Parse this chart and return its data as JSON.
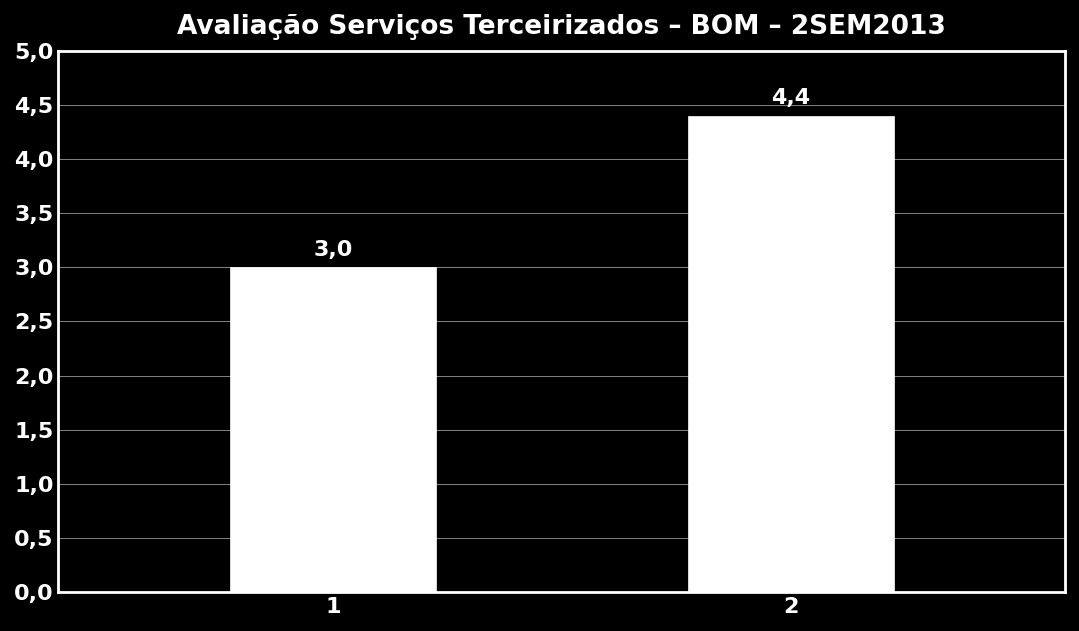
{
  "title": "Avaliação Serviços Terceirizados – BOM – 2SEM2013",
  "categories": [
    "1",
    "2"
  ],
  "values": [
    3.0,
    4.4
  ],
  "bar_color": "#ffffff",
  "bar_edgecolor": "#ffffff",
  "background_color": "#000000",
  "plot_background_color": "#000000",
  "text_color": "#ffffff",
  "grid_color": "#ffffff",
  "grid_linewidth": 0.6,
  "ylim": [
    0,
    5.0
  ],
  "yticks": [
    0.0,
    0.5,
    1.0,
    1.5,
    2.0,
    2.5,
    3.0,
    3.5,
    4.0,
    4.5,
    5.0
  ],
  "ytick_labels": [
    "0,0",
    "0,5",
    "1,0",
    "1,5",
    "2,0",
    "2,5",
    "3,0",
    "3,5",
    "4,0",
    "4,5",
    "5,0"
  ],
  "title_fontsize": 19,
  "tick_fontsize": 16,
  "annotation_fontsize": 16,
  "bar_width": 0.45,
  "border_color": "#ffffff",
  "border_linewidth": 2.0
}
